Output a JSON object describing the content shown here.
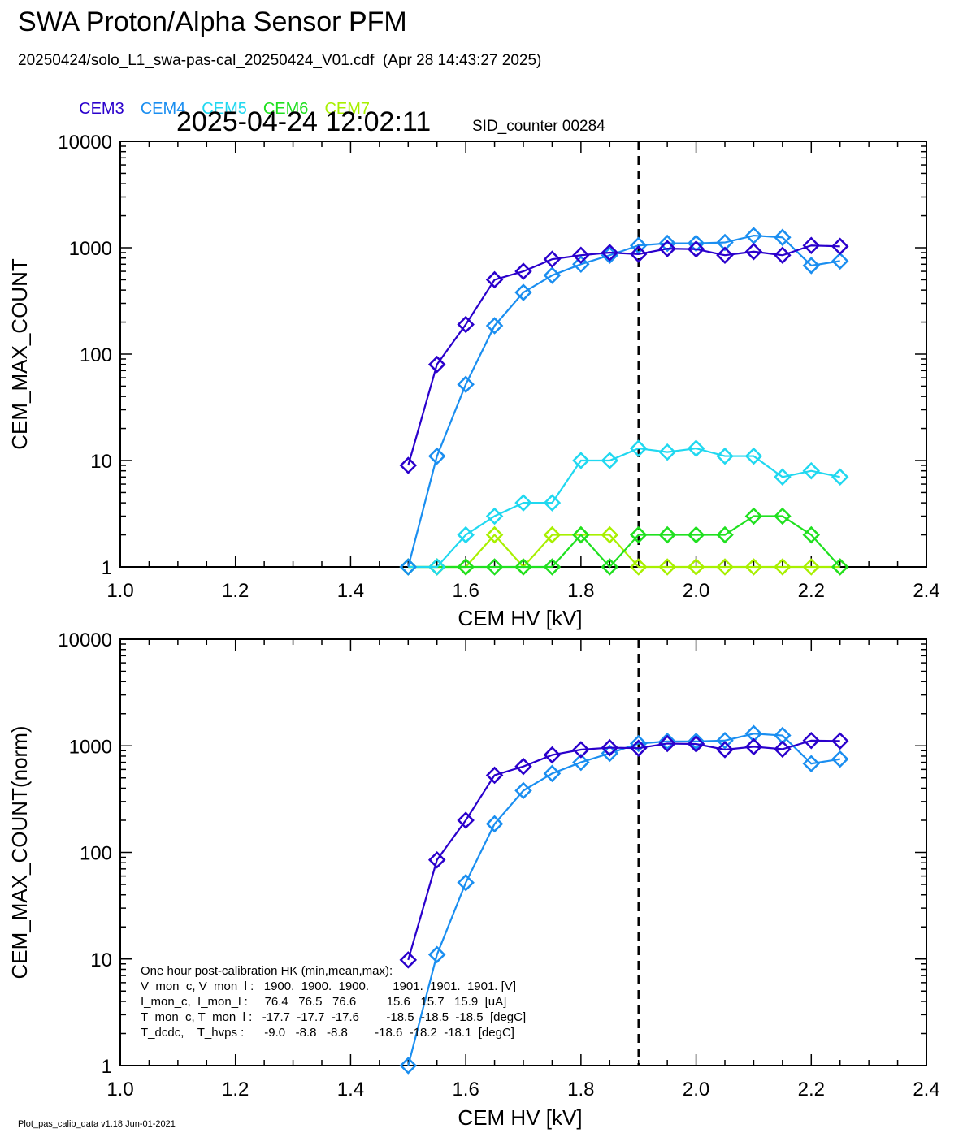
{
  "title": "SWA Proton/Alpha Sensor PFM",
  "file_line": "20250424/solo_L1_swa-pas-cal_20250424_V01.cdf  (Apr 28 14:43:27 2025)",
  "legend": [
    {
      "label": "CEM3",
      "color": "#2a00cc"
    },
    {
      "label": "CEM4",
      "color": "#1a8ef0"
    },
    {
      "label": "CEM5",
      "color": "#20d8f0"
    },
    {
      "label": "CEM6",
      "color": "#20e020"
    },
    {
      "label": "CEM7",
      "color": "#a8f000"
    }
  ],
  "timestamp": "2025-04-24 12:02:11",
  "sid_counter": "SID_counter 00284",
  "footer": "Plot_pas_calib_data v1.18 Jun-01-2021",
  "chart_data": [
    {
      "type": "line",
      "xlabel": "CEM HV [kV]",
      "ylabel": "CEM_MAX_COUNT",
      "xlim": [
        1.0,
        2.4
      ],
      "ylim": [
        1,
        10000
      ],
      "yscale": "log",
      "x_ticks": [
        "1.0",
        "1.2",
        "1.4",
        "1.6",
        "1.8",
        "2.0",
        "2.2",
        "2.4"
      ],
      "y_ticks": [
        "1",
        "10",
        "100",
        "1000",
        "10000"
      ],
      "marker": "diamond",
      "vline": 1.9,
      "x": [
        1.5,
        1.55,
        1.6,
        1.65,
        1.7,
        1.75,
        1.8,
        1.85,
        1.9,
        1.95,
        2.0,
        2.05,
        2.1,
        2.15,
        2.2,
        2.25
      ],
      "series": [
        {
          "name": "CEM3",
          "color": "#2a00cc",
          "values": [
            9,
            80,
            190,
            500,
            600,
            780,
            850,
            900,
            870,
            980,
            970,
            850,
            920,
            850,
            1050,
            1030
          ]
        },
        {
          "name": "CEM4",
          "color": "#1a8ef0",
          "values": [
            1,
            11,
            52,
            185,
            380,
            550,
            700,
            850,
            1050,
            1100,
            1100,
            1120,
            1300,
            1250,
            680,
            750
          ]
        },
        {
          "name": "CEM5",
          "color": "#20d8f0",
          "values": [
            1,
            1,
            2,
            3,
            4,
            4,
            10,
            10,
            13,
            12,
            13,
            11,
            11,
            7,
            8,
            7
          ]
        },
        {
          "name": "CEM6",
          "color": "#20e020",
          "values": [
            1,
            1,
            1,
            1,
            1,
            1,
            2,
            1,
            2,
            2,
            2,
            2,
            3,
            3,
            2,
            1
          ]
        },
        {
          "name": "CEM7",
          "color": "#a8f000",
          "values": [
            1,
            1,
            1,
            2,
            1,
            2,
            2,
            2,
            1,
            1,
            1,
            1,
            1,
            1,
            1,
            1
          ]
        }
      ]
    },
    {
      "type": "line",
      "xlabel": "CEM HV [kV]",
      "ylabel": "CEM_MAX_COUNT(norm)",
      "xlim": [
        1.0,
        2.4
      ],
      "ylim": [
        1,
        10000
      ],
      "yscale": "log",
      "x_ticks": [
        "1.0",
        "1.2",
        "1.4",
        "1.6",
        "1.8",
        "2.0",
        "2.2",
        "2.4"
      ],
      "y_ticks": [
        "1",
        "10",
        "100",
        "1000",
        "10000"
      ],
      "marker": "diamond",
      "vline": 1.9,
      "x": [
        1.5,
        1.55,
        1.6,
        1.65,
        1.7,
        1.75,
        1.8,
        1.85,
        1.9,
        1.95,
        2.0,
        2.05,
        2.1,
        2.15,
        2.2,
        2.25
      ],
      "series": [
        {
          "name": "CEM3",
          "color": "#2a00cc",
          "values": [
            9.8,
            85,
            200,
            530,
            640,
            820,
            920,
            960,
            950,
            1050,
            1040,
            920,
            980,
            930,
            1120,
            1110
          ]
        },
        {
          "name": "CEM4",
          "color": "#1a8ef0",
          "values": [
            1,
            11,
            52,
            185,
            380,
            550,
            700,
            850,
            1050,
            1100,
            1100,
            1120,
            1300,
            1250,
            680,
            750
          ]
        }
      ],
      "annotation": [
        "One hour post-calibration HK (min,mean,max):",
        "V_mon_c, V_mon_l :   1900.  1900.  1900.       1901.  1901.  1901. [V]",
        "I_mon_c,  I_mon_l :     76.4   76.5   76.6         15.6   15.7   15.9  [uA]",
        "T_mon_c, T_mon_l :   -17.7  -17.7  -17.6        -18.5  -18.5  -18.5  [degC]",
        "T_dcdc,    T_hvps :      -9.0   -8.8   -8.8        -18.6  -18.2  -18.1  [degC]"
      ]
    }
  ]
}
